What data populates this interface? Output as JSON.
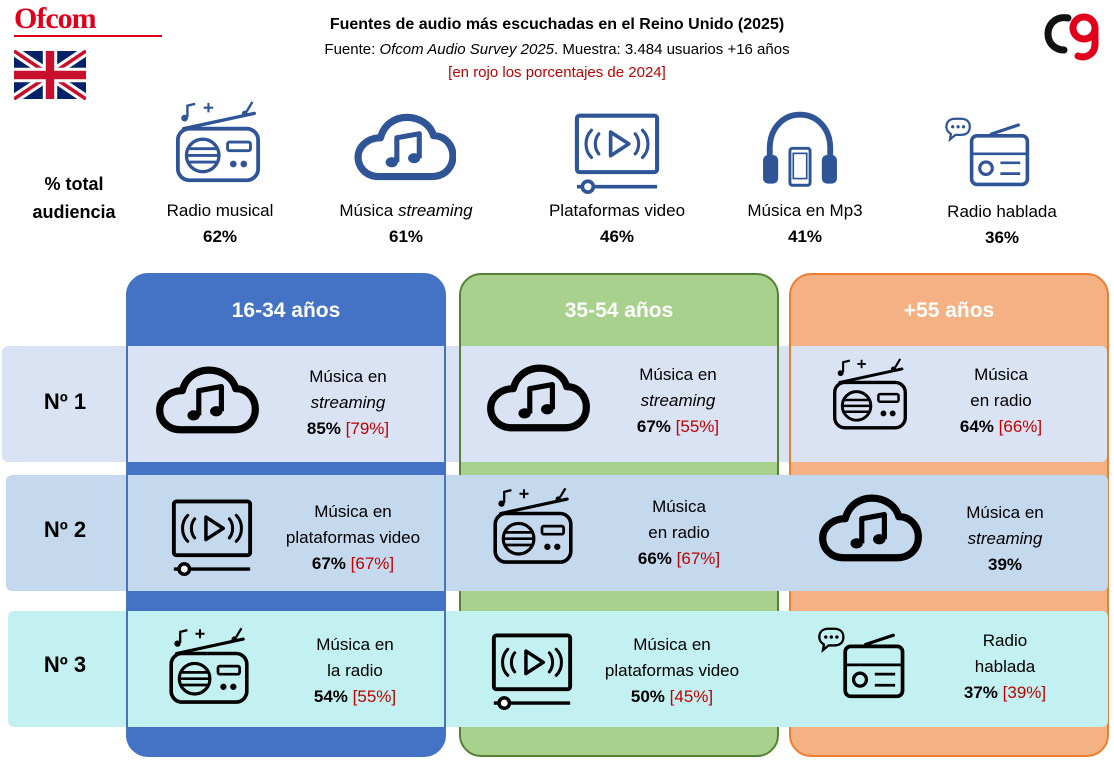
{
  "brand": {
    "ofcom_logo": "Ofcom",
    "flag": "uk-flag",
    "logo_icon": "ag-brand-icon"
  },
  "header": {
    "title": "Fuentes de audio más escuchadas en el Reino Unido (2025)",
    "subtitle_prefix": "Fuente: ",
    "subtitle_source": "Ofcom Audio Survey 2025",
    "subtitle_suffix": ". Muestra: 3.484 usuarios +16 años",
    "note": "[en rojo los porcentajes de 2024]"
  },
  "total": {
    "label_line1": "% total",
    "label_line2": "audiencia",
    "items": [
      {
        "icon": "radio-music-icon",
        "label": "Radio musical",
        "label_em": "",
        "pct": "62%"
      },
      {
        "icon": "cloud-music-icon",
        "label": "Música ",
        "label_em": "streaming",
        "pct": "61%"
      },
      {
        "icon": "video-platform-icon",
        "label": "Plataformas video",
        "label_em": "",
        "pct": "46%"
      },
      {
        "icon": "headphones-icon",
        "label": "Música en Mp3",
        "label_em": "",
        "pct": "41%"
      },
      {
        "icon": "talk-radio-icon",
        "label": "Radio hablada",
        "label_em": "",
        "pct": "36%"
      }
    ]
  },
  "colors": {
    "young": "#4472c4",
    "middle": "#a9d18e",
    "middle_border": "#548235",
    "older": "#f4b183",
    "older_border": "#ed7d31",
    "row1": "#dae3f3",
    "row2": "#c5d9ee",
    "row3": "#c3f0f0",
    "previous_year": "#c00000",
    "icon_blue": "#2f5597"
  },
  "groups": [
    "16-34 años",
    "35-54 años",
    "+55 años"
  ],
  "ranks": [
    "Nº 1",
    "Nº 2",
    "Nº 3"
  ],
  "cells": {
    "r1c1": {
      "icon": "cloud-music-icon",
      "l1": "Música en",
      "l2": "streaming",
      "pct": "85%",
      "prev": "[79%]"
    },
    "r1c2": {
      "icon": "cloud-music-icon",
      "l1": "Música en",
      "l2": "streaming",
      "pct": "67%",
      "prev": "[55%]"
    },
    "r1c3": {
      "icon": "radio-music-icon",
      "l1": "Música",
      "l2": "en radio",
      "pct": "64%",
      "prev": "[66%]"
    },
    "r2c1": {
      "icon": "video-platform-icon",
      "l1": "Música en",
      "l2": "plataformas video",
      "pct": "67%",
      "prev": "[67%]"
    },
    "r2c2": {
      "icon": "radio-music-icon",
      "l1": "Música",
      "l2": "en radio",
      "pct": "66%",
      "prev": "[67%]"
    },
    "r2c3": {
      "icon": "cloud-music-icon",
      "l1": "Música en",
      "l2": "streaming",
      "pct": "39%",
      "prev": ""
    },
    "r3c1": {
      "icon": "radio-music-icon",
      "l1": "Música en",
      "l2": "la radio",
      "pct": "54%",
      "prev": "[55%]"
    },
    "r3c2": {
      "icon": "video-platform-icon",
      "l1": "Música en",
      "l2": "plataformas video",
      "pct": "50%",
      "prev": "[45%]"
    },
    "r3c3": {
      "icon": "talk-radio-icon",
      "l1": "Radio",
      "l2": "hablada",
      "pct": "37%",
      "prev": "[39%]"
    }
  }
}
